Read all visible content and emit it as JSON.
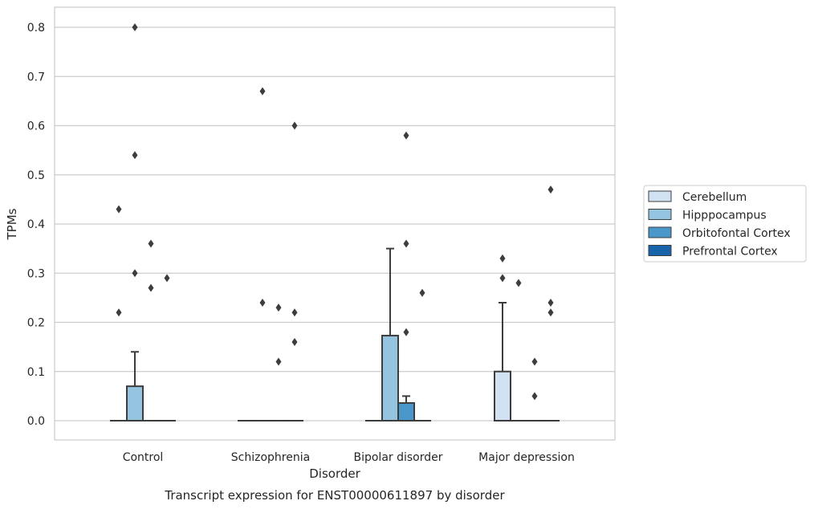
{
  "chart_data": {
    "type": "box",
    "xlabel": "Disorder",
    "ylabel": "TPMs",
    "caption": "Transcript expression for ENST00000611897 by disorder",
    "ylim": [
      -0.04,
      0.84
    ],
    "yticks": [
      0.0,
      0.1,
      0.2,
      0.3,
      0.4,
      0.5,
      0.6,
      0.7,
      0.8
    ],
    "ytick_labels": [
      "0.0",
      "0.1",
      "0.2",
      "0.3",
      "0.4",
      "0.5",
      "0.6",
      "0.7",
      "0.8"
    ],
    "grid": "horizontal",
    "legend_position": "right",
    "categories": [
      "Control",
      "Schizophrenia",
      "Bipolar disorder",
      "Major depression"
    ],
    "series": [
      {
        "name": "Cerebellum",
        "color": "#d0e1f2"
      },
      {
        "name": "Hipppocampus",
        "color": "#94c4df"
      },
      {
        "name": "Orbitofontal Cortex",
        "color": "#4a98c9"
      },
      {
        "name": "Prefrontal Cortex",
        "color": "#1764ab"
      }
    ],
    "boxes": [
      {
        "category": "Control",
        "groups": [
          {
            "series": "Cerebellum",
            "q1": 0,
            "median": 0,
            "q3": 0,
            "whisker_low": 0,
            "whisker_high": 0,
            "outliers": [
              0.22,
              0.43
            ]
          },
          {
            "series": "Hipppocampus",
            "q1": 0,
            "median": 0,
            "q3": 0.07,
            "whisker_low": 0,
            "whisker_high": 0.14,
            "outliers": [
              0.3,
              0.54,
              0.8
            ]
          },
          {
            "series": "Orbitofontal Cortex",
            "q1": 0,
            "median": 0,
            "q3": 0,
            "whisker_low": 0,
            "whisker_high": 0,
            "outliers": [
              0.27,
              0.36
            ]
          },
          {
            "series": "Prefrontal Cortex",
            "q1": 0,
            "median": 0,
            "q3": 0,
            "whisker_low": 0,
            "whisker_high": 0,
            "outliers": [
              0.29
            ]
          }
        ]
      },
      {
        "category": "Schizophrenia",
        "groups": [
          {
            "series": "Cerebellum",
            "q1": 0,
            "median": 0,
            "q3": 0,
            "whisker_low": 0,
            "whisker_high": 0,
            "outliers": []
          },
          {
            "series": "Hipppocampus",
            "q1": 0,
            "median": 0,
            "q3": 0,
            "whisker_low": 0,
            "whisker_high": 0,
            "outliers": [
              0.24,
              0.67
            ]
          },
          {
            "series": "Orbitofontal Cortex",
            "q1": 0,
            "median": 0,
            "q3": 0,
            "whisker_low": 0,
            "whisker_high": 0,
            "outliers": [
              0.12,
              0.23
            ]
          },
          {
            "series": "Prefrontal Cortex",
            "q1": 0,
            "median": 0,
            "q3": 0,
            "whisker_low": 0,
            "whisker_high": 0,
            "outliers": [
              0.16,
              0.22,
              0.6
            ]
          }
        ]
      },
      {
        "category": "Bipolar disorder",
        "groups": [
          {
            "series": "Cerebellum",
            "q1": 0,
            "median": 0,
            "q3": 0,
            "whisker_low": 0,
            "whisker_high": 0,
            "outliers": []
          },
          {
            "series": "Hipppocampus",
            "q1": 0,
            "median": 0,
            "q3": 0.173,
            "whisker_low": 0,
            "whisker_high": 0.35,
            "outliers": []
          },
          {
            "series": "Orbitofontal Cortex",
            "q1": 0,
            "median": 0,
            "q3": 0.036,
            "whisker_low": 0,
            "whisker_high": 0.05,
            "outliers": [
              0.18,
              0.36,
              0.58
            ]
          },
          {
            "series": "Prefrontal Cortex",
            "q1": 0,
            "median": 0,
            "q3": 0,
            "whisker_low": 0,
            "whisker_high": 0,
            "outliers": [
              0.26
            ]
          }
        ]
      },
      {
        "category": "Major depression",
        "groups": [
          {
            "series": "Cerebellum",
            "q1": 0,
            "median": 0,
            "q3": 0.1,
            "whisker_low": 0,
            "whisker_high": 0.24,
            "outliers": [
              0.29,
              0.33
            ]
          },
          {
            "series": "Hipppocampus",
            "q1": 0,
            "median": 0,
            "q3": 0,
            "whisker_low": 0,
            "whisker_high": 0,
            "outliers": [
              0.28
            ]
          },
          {
            "series": "Orbitofontal Cortex",
            "q1": 0,
            "median": 0,
            "q3": 0,
            "whisker_low": 0,
            "whisker_high": 0,
            "outliers": [
              0.05,
              0.12
            ]
          },
          {
            "series": "Prefrontal Cortex",
            "q1": 0,
            "median": 0,
            "q3": 0,
            "whisker_low": 0,
            "whisker_high": 0,
            "outliers": [
              0.22,
              0.24,
              0.47
            ]
          }
        ]
      }
    ]
  }
}
